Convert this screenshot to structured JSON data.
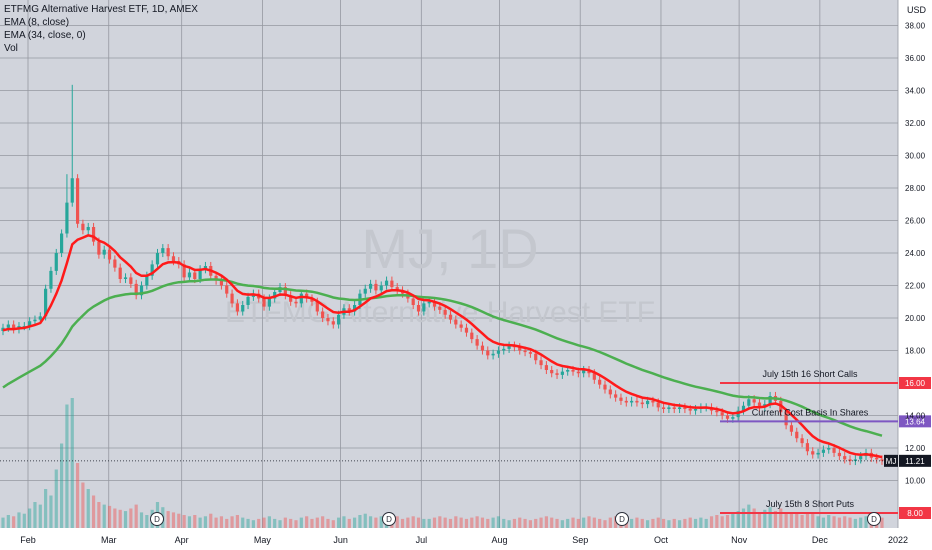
{
  "legend": {
    "title": "ETFMG Alternative Harvest ETF, 1D, AMEX",
    "ema_fast": "EMA (8, close)",
    "ema_slow": "EMA (34, close, 0)",
    "volume": "Vol"
  },
  "currency": "USD",
  "watermark": {
    "symbol": "MJ, 1D",
    "name": "ETFMG Alternative Harvest ETF"
  },
  "colors": {
    "background": "#d1d4dc",
    "grid": "#9598a1",
    "up": "#26a69a",
    "down": "#ef5350",
    "ema_fast": "#ff1a1a",
    "ema_slow": "#4caf50",
    "annotation_line": "#f23645",
    "cost_basis": "#7e57c2",
    "last_price": "#131722"
  },
  "chart_data": {
    "type": "candlestick",
    "ylim": [
      9.5,
      38.8
    ],
    "y_ticks": [
      "10.00",
      "12.00",
      "14.00",
      "18.00",
      "20.00",
      "22.00",
      "24.00",
      "26.00",
      "28.00",
      "30.00",
      "32.00",
      "34.00",
      "36.00",
      "38.00"
    ],
    "x_ticks": [
      "Feb",
      "Mar",
      "Apr",
      "May",
      "Jun",
      "Jul",
      "Aug",
      "Sep",
      "Oct",
      "Nov",
      "Dec",
      "2022"
    ],
    "close": [
      19.4,
      19.6,
      19.3,
      19.5,
      19.5,
      19.8,
      19.9,
      20.1,
      21.8,
      22.9,
      24.0,
      25.2,
      27.1,
      28.6,
      25.8,
      25.4,
      25.6,
      24.7,
      23.9,
      24.2,
      23.6,
      23.1,
      22.4,
      22.5,
      22.1,
      21.4,
      22.0,
      22.6,
      23.3,
      24.0,
      24.3,
      23.8,
      23.5,
      23.3,
      22.5,
      22.8,
      22.4,
      23.0,
      23.2,
      22.6,
      22.3,
      22.0,
      21.5,
      20.9,
      20.4,
      20.8,
      21.3,
      21.5,
      21.2,
      20.7,
      21.2,
      21.6,
      21.9,
      21.4,
      21.0,
      20.9,
      21.5,
      21.2,
      21.0,
      20.4,
      20.0,
      19.8,
      19.6,
      20.2,
      20.6,
      20.4,
      20.8,
      21.5,
      21.8,
      22.1,
      21.7,
      22.0,
      22.3,
      21.9,
      21.7,
      21.5,
      21.2,
      20.8,
      20.4,
      20.9,
      21.0,
      20.7,
      20.5,
      20.2,
      19.9,
      19.6,
      19.4,
      19.1,
      18.7,
      18.3,
      18.0,
      17.7,
      17.8,
      18.0,
      18.1,
      18.3,
      18.2,
      18.0,
      17.9,
      17.8,
      17.4,
      17.1,
      16.8,
      16.6,
      16.5,
      16.7,
      16.8,
      16.7,
      16.6,
      16.8,
      16.6,
      16.2,
      15.9,
      15.6,
      15.3,
      15.1,
      14.9,
      14.8,
      14.9,
      14.8,
      14.7,
      14.9,
      14.8,
      14.5,
      14.4,
      14.5,
      14.4,
      14.5,
      14.4,
      14.3,
      14.4,
      14.5,
      14.5,
      14.3,
      14.2,
      14.0,
      13.8,
      13.9,
      14.3,
      14.6,
      15.0,
      14.8,
      14.5,
      14.7,
      15.2,
      14.9,
      14.2,
      13.4,
      13.0,
      12.6,
      12.3,
      11.8,
      11.6,
      11.7,
      11.9,
      12.0,
      11.7,
      11.5,
      11.3,
      11.2,
      11.3,
      11.5,
      11.7,
      11.4,
      11.3,
      11.21
    ],
    "volume": [
      0.8,
      1.0,
      0.9,
      1.2,
      1.1,
      1.5,
      2.0,
      1.8,
      3.0,
      2.5,
      4.5,
      6.5,
      9.5,
      10.0,
      5.0,
      3.5,
      3.0,
      2.5,
      2.0,
      1.8,
      1.7,
      1.5,
      1.4,
      1.3,
      1.5,
      1.8,
      1.2,
      1.0,
      1.4,
      2.0,
      1.6,
      1.3,
      1.2,
      1.1,
      1.0,
      0.9,
      1.0,
      0.8,
      0.9,
      1.1,
      0.8,
      0.9,
      0.7,
      0.9,
      1.0,
      0.8,
      0.7,
      0.6,
      0.7,
      0.8,
      0.9,
      0.7,
      0.6,
      0.8,
      0.7,
      0.6,
      0.8,
      0.9,
      0.7,
      0.8,
      0.9,
      0.7,
      0.6,
      0.8,
      0.9,
      0.7,
      0.8,
      1.0,
      1.1,
      0.9,
      0.8,
      0.9,
      0.7,
      0.8,
      0.9,
      0.7,
      0.8,
      0.9,
      0.8,
      0.7,
      0.7,
      0.8,
      0.9,
      0.8,
      0.7,
      0.9,
      0.8,
      0.7,
      0.8,
      0.9,
      0.8,
      0.7,
      0.8,
      0.9,
      0.7,
      0.6,
      0.7,
      0.8,
      0.7,
      0.6,
      0.7,
      0.8,
      0.9,
      0.8,
      0.7,
      0.6,
      0.7,
      0.8,
      0.7,
      0.8,
      0.9,
      0.8,
      0.7,
      0.6,
      0.8,
      0.9,
      0.7,
      0.6,
      0.7,
      0.8,
      0.7,
      0.6,
      0.7,
      0.8,
      0.7,
      0.6,
      0.7,
      0.6,
      0.7,
      0.8,
      0.7,
      0.8,
      0.7,
      0.9,
      1.0,
      0.9,
      1.0,
      1.1,
      1.3,
      1.5,
      1.8,
      1.5,
      1.2,
      1.4,
      1.6,
      1.3,
      1.5,
      1.2,
      1.1,
      1.2,
      1.0,
      1.1,
      1.2,
      0.9,
      0.8,
      1.0,
      0.9,
      0.8,
      0.9,
      0.8,
      0.7,
      0.8,
      0.9,
      0.8,
      0.7,
      0.8
    ],
    "dividend_markers": [
      "D",
      "D",
      "D",
      "D"
    ],
    "horizontal_levels": [
      {
        "label": "July 15th 16 Short Calls",
        "value": 16.0,
        "tag": "16.00"
      },
      {
        "label": "Current Cost Basis In Shares",
        "value": 13.64,
        "tag": "13.64"
      },
      {
        "label": "July 15th 8 Short Puts",
        "value": 8.0,
        "tag": "8.00"
      }
    ],
    "last_price": {
      "symbol": "MJ",
      "value": 11.21,
      "tag": "11.21"
    }
  }
}
